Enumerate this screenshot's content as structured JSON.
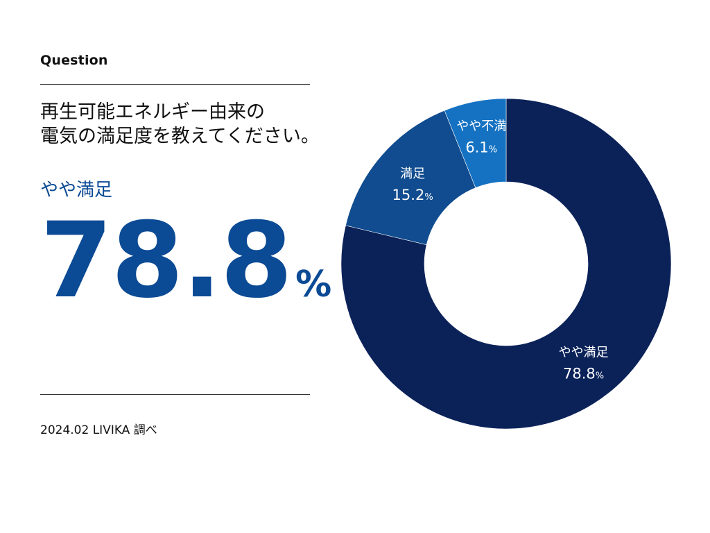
{
  "header": {
    "label": "Question",
    "question_line1": "再生可能エネルギー由来の",
    "question_line2": "電気の満足度を教えてください。"
  },
  "highlight": {
    "label": "やや満足",
    "value": "78.8",
    "unit": "%"
  },
  "footer": {
    "source": "2024.02 LIVIKA 調べ"
  },
  "colors": {
    "accent": "#0b4a95",
    "slice_dark": "#0b2259",
    "slice_mid": "#104c8f",
    "slice_light": "#1572c2",
    "label_text": "#ffffff"
  },
  "chart_data": {
    "type": "pie",
    "donut": true,
    "start": "top",
    "direction": "clockwise",
    "categories": [
      "やや満足",
      "満足",
      "やや不満"
    ],
    "values": [
      78.8,
      15.2,
      6.1
    ],
    "value_labels": [
      "78.8",
      "15.2",
      "6.1"
    ],
    "unit": "%",
    "colors": [
      "#0b2259",
      "#104c8f",
      "#1572c2"
    ]
  }
}
